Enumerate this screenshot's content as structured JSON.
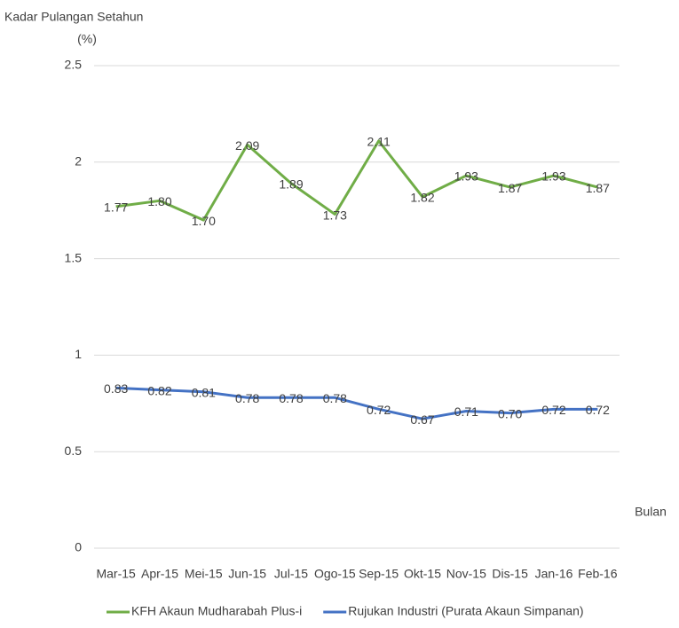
{
  "chart_data": {
    "type": "line",
    "y_label": [
      "Kadar Pulangan Setahun",
      "(%)"
    ],
    "x_label": "Bulan",
    "categories": [
      "Mar-15",
      "Apr-15",
      "Mei-15",
      "Jun-15",
      "Jul-15",
      "Ogo-15",
      "Sep-15",
      "Okt-15",
      "Nov-15",
      "Dis-15",
      "Jan-16",
      "Feb-16"
    ],
    "series": [
      {
        "name": "KFH Akaun Mudharabah Plus-i",
        "color": "#70ad47",
        "values": [
          1.77,
          1.8,
          1.7,
          2.09,
          1.89,
          1.73,
          2.11,
          1.82,
          1.93,
          1.87,
          1.93,
          1.87
        ],
        "value_labels": [
          "1.77",
          "1.80",
          "1.70",
          "2.09",
          "1.89",
          "1.73",
          "2.11",
          "1.82",
          "1.93",
          "1.87",
          "1.93",
          "1.87"
        ]
      },
      {
        "name": "Rujukan Industri (Purata Akaun Simpanan)",
        "color": "#4472c4",
        "values": [
          0.83,
          0.82,
          0.81,
          0.78,
          0.78,
          0.78,
          0.72,
          0.67,
          0.71,
          0.7,
          0.72,
          0.72
        ],
        "value_labels": [
          "0.83",
          "0.82",
          "0.81",
          "0.78",
          "0.78",
          "0.78",
          "0.72",
          "0.67",
          "0.71",
          "0.70",
          "0.72",
          "0.72"
        ]
      }
    ],
    "ylim": [
      0,
      2.5
    ],
    "yticks": [
      0,
      0.5,
      1,
      1.5,
      2,
      2.5
    ],
    "grid": true
  }
}
